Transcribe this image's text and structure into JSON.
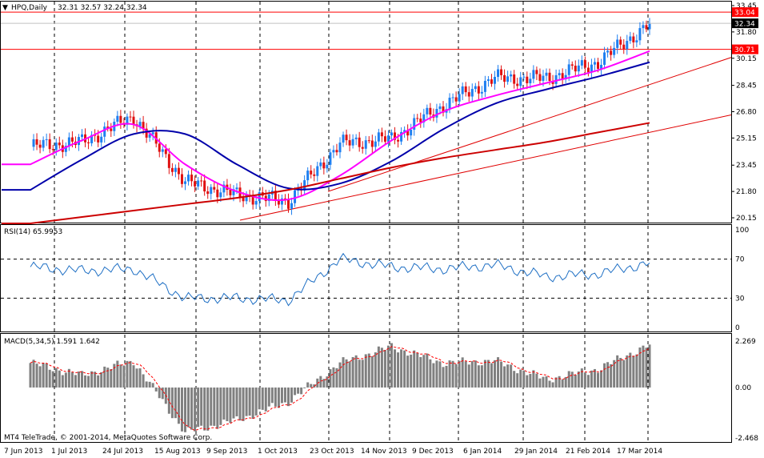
{
  "main": {
    "symbol_label": "HPQ,Daily",
    "ohlc_label": "32.31 32.57 32.24 32.34",
    "y_ticks": [
      33.45,
      31.8,
      30.15,
      28.45,
      26.8,
      25.15,
      23.45,
      21.8,
      20.15
    ],
    "price_tags": [
      {
        "value": 33.04,
        "label": "33.04",
        "bg": "#ff0000",
        "color": "#ffffff"
      },
      {
        "value": 32.34,
        "label": "32.34",
        "bg": "#000000",
        "color": "#ffffff"
      },
      {
        "value": 30.71,
        "label": "30.71",
        "bg": "#ff0000",
        "color": "#ffffff"
      }
    ],
    "hlines": [
      {
        "value": 33.04,
        "color": "#ff0000"
      },
      {
        "value": 32.34,
        "color": "#c0c0c0"
      },
      {
        "value": 30.71,
        "color": "#ff0000"
      }
    ]
  },
  "rsi": {
    "label": "RSI(14) 65.9953",
    "ticks": [
      100,
      70,
      30,
      0
    ],
    "levels": [
      70,
      30
    ],
    "color": "#1e6fc4"
  },
  "macd": {
    "label": "MACD(5,34,5) 1.591 1.642",
    "ticks": [
      2.269,
      0.0,
      -2.468
    ],
    "tick_labels": [
      "2.269",
      "0.00",
      "-2.468"
    ],
    "hist_color": "#808080",
    "signal_color": "#ff0000"
  },
  "x_labels": [
    "7 Jun 2013",
    "1 Jul 2013",
    "24 Jul 2013",
    "15 Aug 2013",
    "9 Sep 2013",
    "1 Oct 2013",
    "23 Oct 2013",
    "14 Nov 2013",
    "9 Dec 2013",
    "6 Jan 2014",
    "29 Jan 2014",
    "21 Feb 2014",
    "17 Mar 2014"
  ],
  "copyright": "MT4 TeleTrade, © 2001-2014, MetaQuotes Software Corp.",
  "chart_data": {
    "type": "candlestick",
    "symbol": "HPQ",
    "timeframe": "Daily",
    "last_ohlc": {
      "open": 32.31,
      "high": 32.57,
      "low": 32.24,
      "close": 32.34
    },
    "close_approx": [
      {
        "date": "7 Jun 2013",
        "close": 24.6
      },
      {
        "date": "1 Jul 2013",
        "close": 24.9
      },
      {
        "date": "24 Jul 2013",
        "close": 26.5
      },
      {
        "date": "15 Aug 2013",
        "close": 22.4
      },
      {
        "date": "9 Sep 2013",
        "close": 21.6
      },
      {
        "date": "1 Oct 2013",
        "close": 21.2
      },
      {
        "date": "23 Oct 2013",
        "close": 24.8
      },
      {
        "date": "14 Nov 2013",
        "close": 25.1
      },
      {
        "date": "9 Dec 2013",
        "close": 27.2
      },
      {
        "date": "6 Jan 2014",
        "close": 28.9
      },
      {
        "date": "29 Jan 2014",
        "close": 28.9
      },
      {
        "date": "21 Feb 2014",
        "close": 29.9
      },
      {
        "date": "17 Mar 2014",
        "close": 32.3
      }
    ],
    "moving_averages": [
      {
        "color": "#ff00ff",
        "values": [
          23.5,
          25.0,
          26.0,
          23.5,
          21.8,
          21.3,
          22.8,
          25.0,
          26.8,
          27.8,
          28.6,
          29.4,
          30.6
        ]
      },
      {
        "color": "#0000aa",
        "values": [
          21.9,
          23.8,
          25.4,
          25.4,
          23.5,
          22.0,
          22.3,
          23.7,
          25.7,
          27.3,
          28.2,
          29.0,
          29.9
        ]
      },
      {
        "color": "#cc0000",
        "values": [
          19.8,
          20.2,
          20.6,
          21.0,
          21.4,
          21.9,
          22.6,
          23.3,
          23.9,
          24.4,
          24.9,
          25.5,
          26.1
        ]
      }
    ],
    "rsi_approx": [
      62,
      58,
      60,
      30,
      30,
      28,
      70,
      62,
      60,
      64,
      52,
      55,
      66
    ],
    "macd_approx": [
      1.2,
      0.6,
      1.3,
      -2.2,
      -1.6,
      -0.7,
      1.2,
      2.0,
      1.2,
      1.3,
      0.4,
      0.9,
      2.1
    ],
    "main_ylim": [
      20.15,
      33.45
    ],
    "rsi_ylim": [
      0,
      100
    ],
    "macd_ylim": [
      -2.468,
      2.269
    ]
  }
}
